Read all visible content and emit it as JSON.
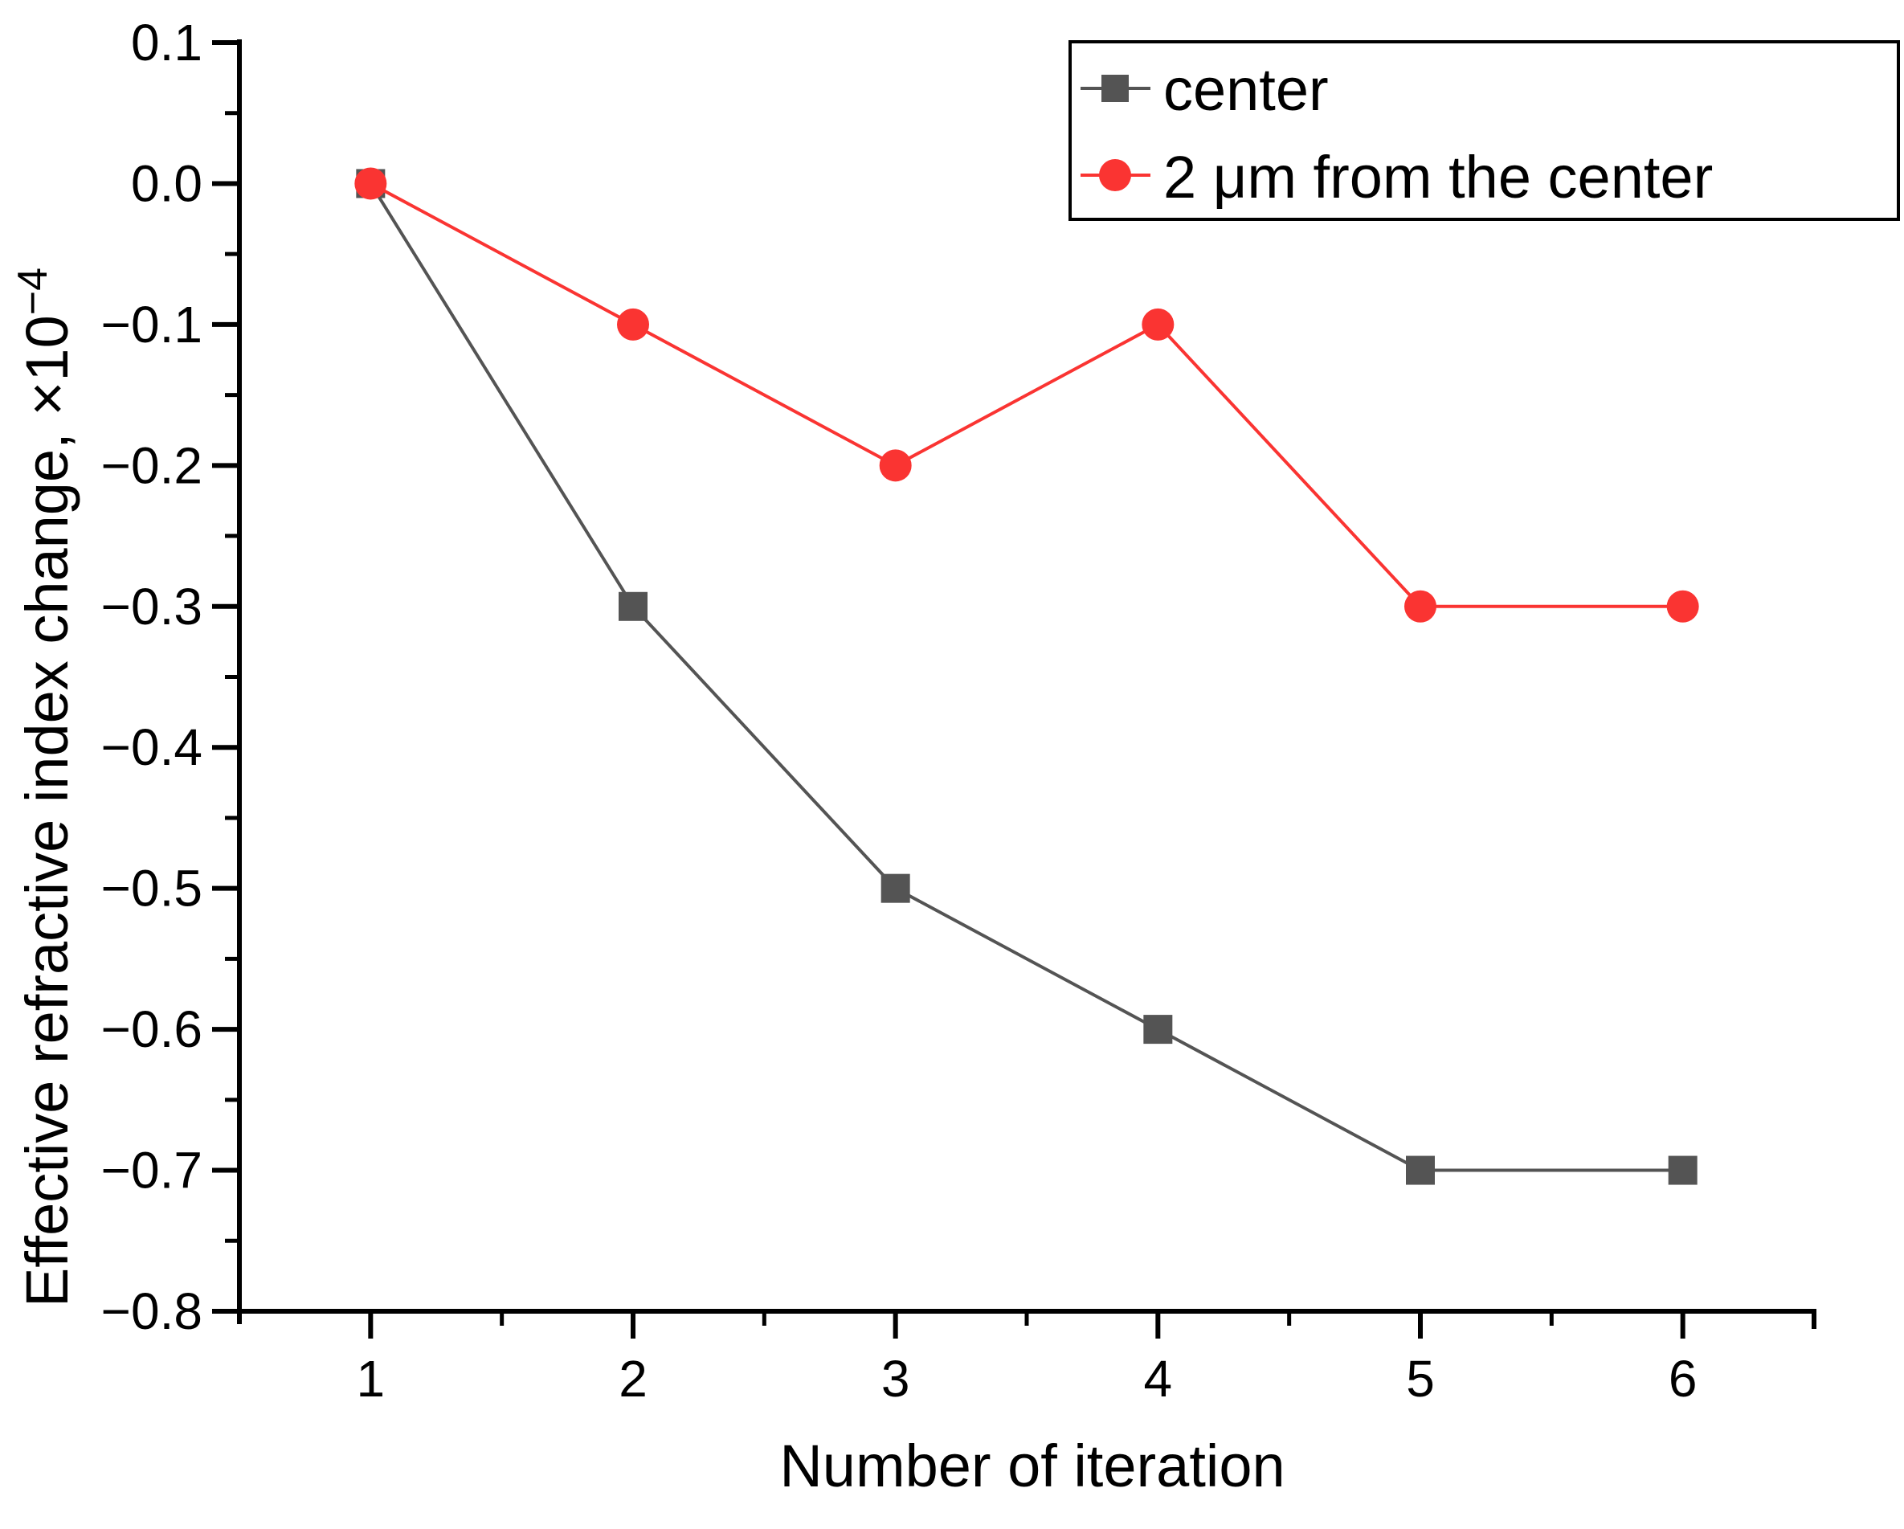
{
  "figure": {
    "background": "#ffffff",
    "axis_color": "#000000"
  },
  "chart_data": {
    "type": "line",
    "title": "",
    "xlabel": "Number of iteration",
    "ylabel": "Effective refractive index change, ×10⁻⁴",
    "ylabel_main": "Effective refractive index change, ×10",
    "ylabel_sup": "−4",
    "xlim": [
      0.5,
      6.5
    ],
    "ylim": [
      -0.8,
      0.1
    ],
    "grid": false,
    "x": [
      1,
      2,
      3,
      4,
      5,
      6
    ],
    "x_ticks": [
      "1",
      "2",
      "3",
      "4",
      "5",
      "6"
    ],
    "y_ticks": [
      "0.1",
      "0.0",
      "−0.1",
      "−0.2",
      "−0.3",
      "−0.4",
      "−0.5",
      "−0.6",
      "−0.7",
      "−0.8"
    ],
    "x_minor_step": 0.5,
    "y_minor_step": 0.05,
    "legend": {
      "position": "top-right",
      "border_color": "#000000",
      "background": "#ffffff"
    },
    "series": [
      {
        "name": "center",
        "color": "#545454",
        "marker": "square",
        "values": [
          0.0,
          -0.3,
          -0.5,
          -0.6,
          -0.7,
          -0.7
        ]
      },
      {
        "name": "2 μm from the center",
        "color": "#fa3432",
        "marker": "circle",
        "values": [
          0.0,
          -0.1,
          -0.2,
          -0.1,
          -0.3,
          -0.3
        ]
      }
    ]
  }
}
